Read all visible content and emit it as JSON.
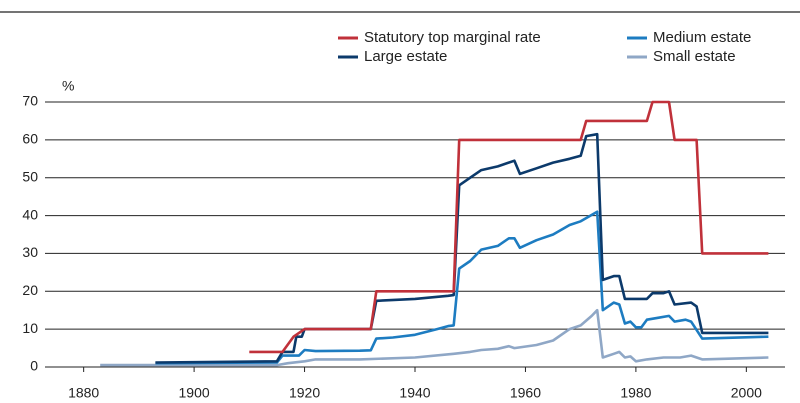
{
  "chart_data": {
    "type": "line",
    "y_label": "%",
    "xlim": [
      1873,
      2007
    ],
    "xticks": [
      1880,
      1900,
      1920,
      1940,
      1960,
      1980,
      2000
    ],
    "ylim": [
      0,
      70
    ],
    "yticks": [
      0,
      10,
      20,
      30,
      40,
      50,
      60,
      70
    ],
    "grid": true,
    "series": [
      {
        "name": "Statutory top marginal rate",
        "color": "#c0313a",
        "x": [
          1910,
          1916,
          1918,
          1920,
          1932,
          1933,
          1947,
          1948,
          1970,
          1971,
          1982,
          1983,
          1986,
          1987,
          1991,
          1992,
          2004
        ],
        "values": [
          4,
          4,
          8,
          10,
          10,
          20,
          20,
          60,
          60,
          65,
          65,
          70,
          70,
          60,
          60,
          30,
          30
        ]
      },
      {
        "name": "Medium estate",
        "color": "#1d7cc1",
        "x": [
          1893,
          1915,
          1916,
          1919,
          1920,
          1922,
          1930,
          1932,
          1933,
          1936,
          1940,
          1944,
          1946,
          1947,
          1948,
          1950,
          1952,
          1955,
          1957,
          1958,
          1959,
          1962,
          1965,
          1968,
          1970,
          1973,
          1974,
          1976,
          1977,
          1978,
          1979,
          1980,
          1981,
          1982,
          1984,
          1986,
          1987,
          1989,
          1990,
          1992,
          2004
        ],
        "values": [
          1,
          1.2,
          3,
          3,
          4.5,
          4.2,
          4.3,
          4.4,
          7.5,
          7.8,
          8.5,
          10,
          10.8,
          11,
          26,
          28,
          31,
          32,
          34,
          34,
          31.5,
          33.5,
          35,
          37.5,
          38.5,
          41,
          15,
          17,
          16.5,
          11.5,
          12,
          10.5,
          10.5,
          12.5,
          13,
          13.5,
          12,
          12.5,
          12,
          7.5,
          8
        ]
      },
      {
        "name": "Large estate",
        "color": "#0c3a6b",
        "x": [
          1893,
          1915,
          1916,
          1918,
          1918.5,
          1919.5,
          1920,
          1932,
          1933,
          1940,
          1946,
          1947,
          1948,
          1950,
          1952,
          1955,
          1958,
          1959,
          1962,
          1965,
          1968,
          1970,
          1971,
          1973,
          1974,
          1976,
          1977,
          1978,
          1980,
          1982,
          1983,
          1985,
          1986,
          1987,
          1990,
          1991,
          1992,
          2004
        ],
        "values": [
          1.2,
          1.5,
          4,
          4,
          8,
          8,
          10,
          10,
          17.5,
          18,
          18.8,
          19,
          48,
          50,
          52,
          53,
          54.5,
          51,
          52.5,
          54,
          55,
          55.8,
          61,
          61.5,
          23,
          24,
          24,
          18,
          18,
          18,
          19.5,
          19.5,
          20,
          16.5,
          17,
          16,
          9,
          9
        ]
      },
      {
        "name": "Small estate",
        "color": "#8fa7c6",
        "x": [
          1883,
          1915,
          1917,
          1920,
          1922,
          1925,
          1930,
          1940,
          1947,
          1950,
          1952,
          1955,
          1957,
          1958,
          1962,
          1965,
          1968,
          1970,
          1972,
          1973,
          1974,
          1976,
          1977,
          1978,
          1979,
          1980,
          1982,
          1985,
          1988,
          1990,
          1992,
          2004
        ],
        "values": [
          0.5,
          0.5,
          1,
          1.5,
          2,
          2,
          2,
          2.5,
          3.5,
          4,
          4.5,
          4.8,
          5.5,
          5,
          5.8,
          7,
          10,
          11,
          13.5,
          15,
          2.5,
          3.5,
          4,
          2.5,
          2.8,
          1.5,
          2,
          2.5,
          2.5,
          3,
          2,
          2.5
        ]
      }
    ]
  }
}
